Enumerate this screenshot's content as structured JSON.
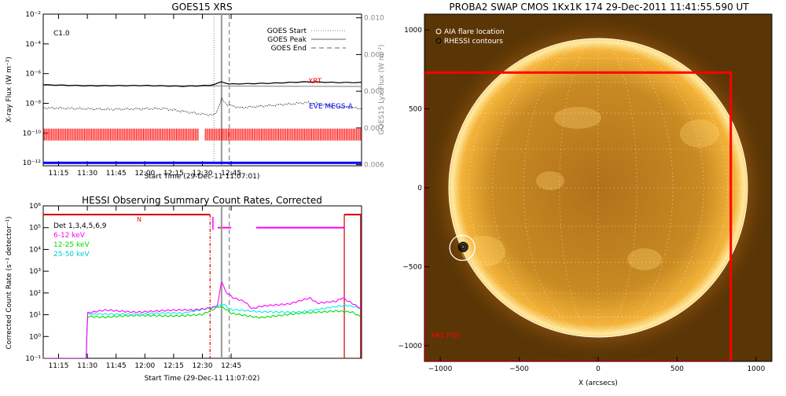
{
  "chart_data": [
    {
      "type": "line",
      "title": "GOES15 XRS",
      "xlabel": "Start Time (29-Dec-11 11:07:01)",
      "ylabel": "X-ray Flux (W m⁻²)",
      "ylabel_right": "GOES15 Lyx Flux (W m⁻²)",
      "x_ticks": [
        "11:15",
        "11:30",
        "11:45",
        "12:00",
        "12:15",
        "12:30",
        "12:45"
      ],
      "y_ticks": [
        "10⁻²",
        "10⁻⁴",
        "10⁻⁶",
        "10⁻⁸",
        "10⁻¹⁰",
        "10⁻¹²"
      ],
      "y_ticks_right": [
        "0.010",
        "0.009",
        "0.008",
        "0.007",
        "0.006"
      ],
      "xlim_minutes": [
        7,
        173
      ],
      "ylim_log10": [
        -12.2,
        -2
      ],
      "flare_class": "C1.0",
      "legend": [
        "GOES Start",
        "GOES Peak",
        "GOES End"
      ],
      "event_lines_minutes": {
        "start": 96,
        "peak": 100,
        "end": 104
      },
      "annotations": [
        "XRT",
        "EVE MEGS-A"
      ],
      "series": [
        {
          "name": "GOES long",
          "color": "#000000",
          "values_log10": [
            [
              7,
              -6.75
            ],
            [
              30,
              -6.82
            ],
            [
              60,
              -6.8
            ],
            [
              80,
              -6.85
            ],
            [
              93,
              -6.8
            ],
            [
              97,
              -6.7
            ],
            [
              100,
              -6.55
            ],
            [
              104,
              -6.7
            ],
            [
              125,
              -6.65
            ],
            [
              145,
              -6.55
            ],
            [
              160,
              -6.6
            ],
            [
              173,
              -6.6
            ]
          ]
        },
        {
          "name": "GOES short",
          "color": "#000000",
          "values_log10": [
            [
              7,
              -8.3
            ],
            [
              40,
              -8.4
            ],
            [
              70,
              -8.35
            ],
            [
              88,
              -8.7
            ],
            [
              96,
              -8.8
            ],
            [
              98,
              -8.4
            ],
            [
              100,
              -7.7
            ],
            [
              103,
              -8.1
            ],
            [
              110,
              -8.3
            ],
            [
              145,
              -7.95
            ],
            [
              160,
              -8.2
            ],
            [
              173,
              -8.35
            ]
          ]
        },
        {
          "name": "Lyman-alpha",
          "color": "#888888",
          "values": [
            [
              7,
              0.00816
            ],
            [
              173,
              0.00813
            ]
          ]
        },
        {
          "name": "XRT",
          "color": "#ff0000",
          "values_log10_band": [
            -10.5,
            -9.7
          ]
        },
        {
          "name": "EVE MEGS-A",
          "color": "#0000ff",
          "values_log10": [
            [
              7,
              -12.0
            ],
            [
              173,
              -12.0
            ]
          ]
        }
      ]
    },
    {
      "type": "line",
      "title": "HESSI Observing Summary Count Rates, Corrected",
      "xlabel": "Start Time (29-Dec-11 11:07:02)",
      "ylabel": "Corrected Count Rate (s⁻¹ detector⁻¹)",
      "x_ticks": [
        "11:15",
        "11:30",
        "11:45",
        "12:00",
        "12:15",
        "12:30",
        "12:45"
      ],
      "y_ticks": [
        "10⁶",
        "10⁵",
        "10⁴",
        "10³",
        "10²",
        "10¹",
        "10⁰",
        "10⁻¹"
      ],
      "xlim_minutes": [
        7,
        173
      ],
      "ylim_log10": [
        -1,
        6
      ],
      "legend_title": "Det 1,3,4,5,6,9",
      "night_marker": "N",
      "series": [
        {
          "name": "6-12 keV",
          "color": "#ff00ff",
          "values_log10": [
            [
              7,
              -1
            ],
            [
              29.5,
              -1
            ],
            [
              30,
              1.05
            ],
            [
              40,
              1.2
            ],
            [
              55,
              1.15
            ],
            [
              85,
              1.2
            ],
            [
              96,
              1.35
            ],
            [
              98,
              1.5
            ],
            [
              100,
              2.6
            ],
            [
              102,
              2.1
            ],
            [
              106,
              1.8
            ],
            [
              112,
              1.6
            ],
            [
              116,
              1.25
            ],
            [
              120,
              1.35
            ],
            [
              135,
              1.5
            ],
            [
              142,
              1.7
            ],
            [
              146,
              1.8
            ],
            [
              150,
              1.55
            ],
            [
              160,
              1.6
            ],
            [
              163,
              1.75
            ],
            [
              168,
              1.5
            ],
            [
              172,
              1.3
            ],
            [
              173,
              1.3
            ]
          ]
        },
        {
          "name": "12-25 keV",
          "color": "#00dd00",
          "values_log10": [
            [
              7,
              -1
            ],
            [
              29.5,
              -1
            ],
            [
              30,
              0.95
            ],
            [
              40,
              0.9
            ],
            [
              60,
              0.95
            ],
            [
              90,
              1.0
            ],
            [
              99,
              1.35
            ],
            [
              101,
              1.3
            ],
            [
              105,
              1.05
            ],
            [
              120,
              0.9
            ],
            [
              135,
              1.0
            ],
            [
              150,
              1.1
            ],
            [
              160,
              1.2
            ],
            [
              168,
              1.15
            ],
            [
              173,
              0.9
            ]
          ]
        },
        {
          "name": "25-50 keV",
          "color": "#00eeee",
          "values_log10": [
            [
              7,
              -1
            ],
            [
              29.5,
              -1
            ],
            [
              30,
              1.0
            ],
            [
              50,
              1.05
            ],
            [
              80,
              1.05
            ],
            [
              99,
              1.45
            ],
            [
              101,
              1.5
            ],
            [
              105,
              1.25
            ],
            [
              120,
              1.1
            ],
            [
              140,
              1.15
            ],
            [
              155,
              1.3
            ],
            [
              165,
              1.4
            ],
            [
              173,
              1.3
            ]
          ]
        }
      ],
      "event_lines_minutes": {
        "start": 96,
        "peak": 100,
        "end": 104
      }
    },
    {
      "type": "scatter",
      "title": "PROBA2 SWAP CMOS 1Kx1K 174 29-Dec-2011 11:41:55.590 UT",
      "xlabel": "X (arcsecs)",
      "ylabel": "",
      "x_ticks": [
        "−1000",
        "−500",
        "0",
        "500",
        "1000"
      ],
      "y_ticks": [
        "1000",
        "500",
        "0",
        "−500",
        "−1000"
      ],
      "xlim": [
        -1100,
        1100
      ],
      "ylim": [
        -1100,
        1100
      ],
      "legend": [
        "AIA flare location",
        "RHESSI contours"
      ],
      "xrt_fov_label": "XRT FOV",
      "xrt_fov": {
        "x": [
          -1100,
          840
        ],
        "y": [
          -1100,
          730
        ]
      },
      "flare_location": {
        "x": -860,
        "y": -380
      },
      "solar_radius_arcsec": 945
    }
  ],
  "colors": {
    "magenta": "#ff00ff",
    "green": "#00dd00",
    "cyan": "#00eeee",
    "red": "#ff0000",
    "blue": "#0000ff"
  }
}
